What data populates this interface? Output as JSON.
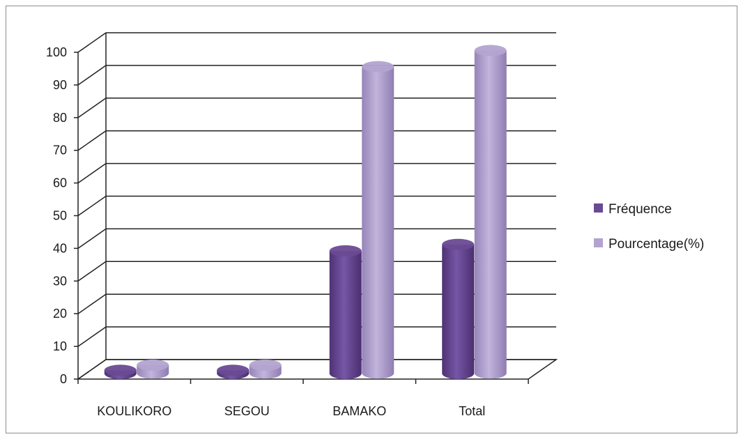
{
  "chart_data": {
    "type": "bar",
    "categories": [
      "KOULIKORO",
      "SEGOU",
      "BAMAKO",
      "Total"
    ],
    "series": [
      {
        "name": "Fréquence",
        "values": [
          1,
          1,
          38,
          40
        ],
        "color": "#6a4a93"
      },
      {
        "name": "Pourcentage(%)",
        "values": [
          2.5,
          2.5,
          95,
          100
        ],
        "color": "#b3a3d0"
      }
    ],
    "yticks": [
      "0",
      "10",
      "20",
      "30",
      "40",
      "50",
      "60",
      "70",
      "80",
      "90",
      "100"
    ],
    "ylim": [
      0,
      100
    ],
    "grid": true,
    "legend_position": "right",
    "style": "3d-cylinder"
  }
}
